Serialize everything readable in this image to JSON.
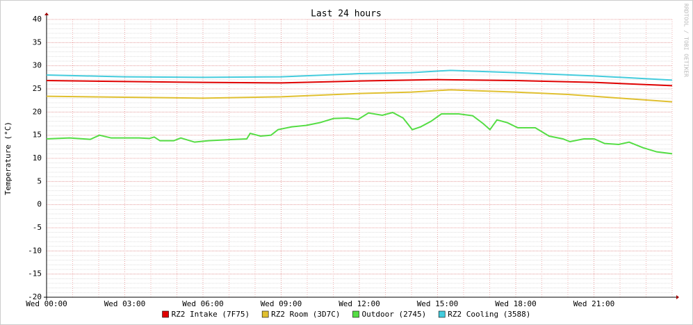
{
  "chart_data": {
    "type": "line",
    "title": "Last 24 hours",
    "ylabel": "Temperature (°C)",
    "watermark": "RRDTOOL / TOBI OETIKER",
    "xlim": [
      0,
      24
    ],
    "xticks": [
      {
        "value": 0,
        "label": "Wed 00:00"
      },
      {
        "value": 3,
        "label": "Wed 03:00"
      },
      {
        "value": 6,
        "label": "Wed 06:00"
      },
      {
        "value": 9,
        "label": "Wed 09:00"
      },
      {
        "value": 12,
        "label": "Wed 12:00"
      },
      {
        "value": 15,
        "label": "Wed 15:00"
      },
      {
        "value": 18,
        "label": "Wed 18:00"
      },
      {
        "value": 21,
        "label": "Wed 21:00"
      }
    ],
    "ylim": [
      -20,
      40
    ],
    "yticks": [
      -20,
      -15,
      -10,
      -5,
      0,
      5,
      10,
      15,
      20,
      25,
      30,
      35,
      40
    ],
    "grid": true,
    "xminor": 1,
    "yminor": 1,
    "series": [
      {
        "name": "RZ2 Intake (7F75)",
        "color": "#e00000",
        "x": [
          0,
          3,
          6,
          9,
          12,
          15,
          18,
          21,
          24
        ],
        "values": [
          26.8,
          26.6,
          26.4,
          26.3,
          26.7,
          27.0,
          26.8,
          26.4,
          25.7
        ]
      },
      {
        "name": "RZ2 Room (3D7C)",
        "color": "#e0c030",
        "x": [
          0,
          3,
          6,
          9,
          12,
          14,
          15.5,
          18,
          20,
          21,
          24
        ],
        "values": [
          23.4,
          23.2,
          23.0,
          23.3,
          24.0,
          24.3,
          24.8,
          24.3,
          23.8,
          23.4,
          22.2
        ]
      },
      {
        "name": "Outdoor (2745)",
        "color": "#55dd44",
        "x": [
          0,
          0.88,
          1.68,
          2.03,
          2.48,
          3.55,
          3.95,
          4.13,
          4.35,
          4.88,
          5.15,
          5.68,
          6.21,
          7.28,
          7.68,
          7.81,
          8.21,
          8.61,
          8.88,
          9.41,
          9.95,
          10.48,
          11.01,
          11.55,
          11.95,
          12.35,
          12.88,
          13.28,
          13.68,
          14.03,
          14.35,
          14.75,
          15.15,
          15.81,
          16.35,
          16.75,
          17.01,
          17.28,
          17.68,
          18.08,
          18.75,
          19.28,
          19.81,
          20.08,
          20.61,
          21.01,
          21.41,
          21.95,
          22.35,
          22.88,
          23.41,
          24
        ],
        "values": [
          14.2,
          14.4,
          14.1,
          15.0,
          14.4,
          14.4,
          14.3,
          14.6,
          13.8,
          13.8,
          14.4,
          13.5,
          13.8,
          14.1,
          14.2,
          15.4,
          14.8,
          15.0,
          16.2,
          16.8,
          17.1,
          17.7,
          18.6,
          18.7,
          18.4,
          19.8,
          19.3,
          19.9,
          18.7,
          16.2,
          16.8,
          18.0,
          19.6,
          19.6,
          19.2,
          17.5,
          16.2,
          18.3,
          17.7,
          16.6,
          16.6,
          14.8,
          14.2,
          13.6,
          14.2,
          14.2,
          13.2,
          13.0,
          13.5,
          12.3,
          11.4,
          11.0
        ]
      },
      {
        "name": "RZ2 Cooling (3588)",
        "color": "#44ccdd",
        "x": [
          0,
          3,
          6,
          9,
          12,
          14,
          15.5,
          18,
          21,
          24
        ],
        "values": [
          28.0,
          27.6,
          27.5,
          27.6,
          28.3,
          28.5,
          29.0,
          28.5,
          27.8,
          26.9
        ]
      }
    ]
  }
}
